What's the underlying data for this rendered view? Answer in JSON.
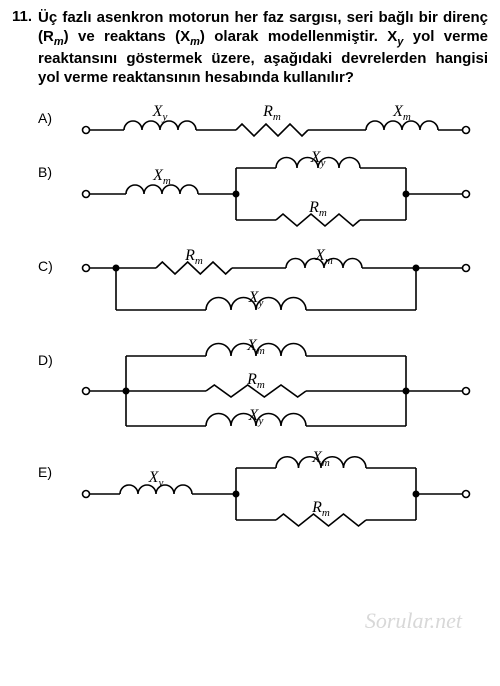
{
  "question": {
    "number": "11.",
    "text_html": "Üç fazlı asenkron motorun her faz sargısı, seri bağlı bir direnç (R<span class='sub'>m</span>) ve reaktans (X<span class='sub'>m</span>) olarak modellenmiştir. X<span class='sub subi'>y</span> yol verme reaktansını göstermek üzere, aşağıdaki devrelerden hangisi yol verme reaktansının hesabında kullanılır?"
  },
  "labels": {
    "A": "A)",
    "B": "B)",
    "C": "C)",
    "D": "D)",
    "E": "E)"
  },
  "sym": {
    "Xy": "X",
    "Xy_s": "y",
    "Xm": "X",
    "Xm_s": "m",
    "Rm": "R",
    "Rm_s": "m"
  },
  "style": {
    "stroke": "#000000",
    "stroke_width": 1.6,
    "node_fill": "#000000",
    "term_fill": "#ffffff",
    "font_size_label": 16,
    "font_size_sub": 11
  },
  "watermark": "Sorular.net"
}
